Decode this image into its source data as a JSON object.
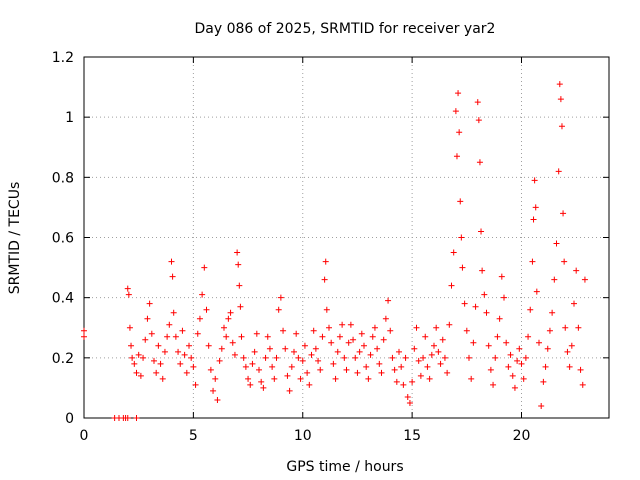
{
  "chart_data": {
    "type": "scatter",
    "title": "Day 086 of 2025, SRMTID for receiver yar2",
    "xlabel": "GPS time / hours",
    "ylabel": "SRMTID / TECUs",
    "xlim": [
      0,
      24
    ],
    "ylim": [
      0,
      1.2
    ],
    "x_ticks": [
      0,
      5,
      10,
      15,
      20
    ],
    "x_tick_labels": [
      "0",
      "5",
      "10",
      "15",
      "20"
    ],
    "y_ticks": [
      0,
      0.2,
      0.4,
      0.6,
      0.8,
      1,
      1.2
    ],
    "y_tick_labels": [
      "0",
      "0.2",
      "0.4",
      "0.6",
      "0.8",
      "1",
      "1.2"
    ],
    "grid": true,
    "marker": "plus",
    "color": "#ff0000",
    "series": [
      {
        "name": "SRMTID",
        "points": [
          [
            0.0,
            0.29
          ],
          [
            0.0,
            0.27
          ],
          [
            1.4,
            0.0
          ],
          [
            1.6,
            0.0
          ],
          [
            1.8,
            0.0
          ],
          [
            1.9,
            0.0
          ],
          [
            2.0,
            0.0
          ],
          [
            2.4,
            0.0
          ],
          [
            2.0,
            0.43
          ],
          [
            2.05,
            0.41
          ],
          [
            2.1,
            0.3
          ],
          [
            2.15,
            0.24
          ],
          [
            2.2,
            0.2
          ],
          [
            2.3,
            0.18
          ],
          [
            2.4,
            0.15
          ],
          [
            2.5,
            0.21
          ],
          [
            2.6,
            0.14
          ],
          [
            2.7,
            0.2
          ],
          [
            2.8,
            0.26
          ],
          [
            2.9,
            0.33
          ],
          [
            3.0,
            0.38
          ],
          [
            3.1,
            0.28
          ],
          [
            3.2,
            0.19
          ],
          [
            3.3,
            0.15
          ],
          [
            3.4,
            0.24
          ],
          [
            3.5,
            0.18
          ],
          [
            3.6,
            0.13
          ],
          [
            3.7,
            0.22
          ],
          [
            3.8,
            0.27
          ],
          [
            3.9,
            0.31
          ],
          [
            4.0,
            0.52
          ],
          [
            4.05,
            0.47
          ],
          [
            4.1,
            0.35
          ],
          [
            4.2,
            0.27
          ],
          [
            4.3,
            0.22
          ],
          [
            4.4,
            0.18
          ],
          [
            4.5,
            0.29
          ],
          [
            4.6,
            0.21
          ],
          [
            4.7,
            0.15
          ],
          [
            4.8,
            0.24
          ],
          [
            4.9,
            0.2
          ],
          [
            5.0,
            0.17
          ],
          [
            5.1,
            0.11
          ],
          [
            5.2,
            0.28
          ],
          [
            5.3,
            0.33
          ],
          [
            5.4,
            0.41
          ],
          [
            5.5,
            0.5
          ],
          [
            5.6,
            0.36
          ],
          [
            5.7,
            0.24
          ],
          [
            5.8,
            0.16
          ],
          [
            5.9,
            0.09
          ],
          [
            6.0,
            0.13
          ],
          [
            6.1,
            0.06
          ],
          [
            6.2,
            0.19
          ],
          [
            6.3,
            0.23
          ],
          [
            6.4,
            0.3
          ],
          [
            6.5,
            0.27
          ],
          [
            6.6,
            0.33
          ],
          [
            6.7,
            0.35
          ],
          [
            6.8,
            0.25
          ],
          [
            6.9,
            0.21
          ],
          [
            7.0,
            0.55
          ],
          [
            7.05,
            0.51
          ],
          [
            7.1,
            0.44
          ],
          [
            7.15,
            0.37
          ],
          [
            7.2,
            0.27
          ],
          [
            7.3,
            0.2
          ],
          [
            7.4,
            0.17
          ],
          [
            7.5,
            0.13
          ],
          [
            7.6,
            0.11
          ],
          [
            7.7,
            0.18
          ],
          [
            7.8,
            0.22
          ],
          [
            7.9,
            0.28
          ],
          [
            8.0,
            0.16
          ],
          [
            8.1,
            0.12
          ],
          [
            8.2,
            0.1
          ],
          [
            8.3,
            0.2
          ],
          [
            8.4,
            0.27
          ],
          [
            8.5,
            0.23
          ],
          [
            8.6,
            0.17
          ],
          [
            8.7,
            0.13
          ],
          [
            8.8,
            0.2
          ],
          [
            8.9,
            0.36
          ],
          [
            9.0,
            0.4
          ],
          [
            9.1,
            0.29
          ],
          [
            9.2,
            0.23
          ],
          [
            9.3,
            0.14
          ],
          [
            9.4,
            0.09
          ],
          [
            9.5,
            0.17
          ],
          [
            9.6,
            0.22
          ],
          [
            9.7,
            0.28
          ],
          [
            9.8,
            0.2
          ],
          [
            9.9,
            0.13
          ],
          [
            10.0,
            0.19
          ],
          [
            10.1,
            0.24
          ],
          [
            10.2,
            0.15
          ],
          [
            10.3,
            0.11
          ],
          [
            10.4,
            0.21
          ],
          [
            10.5,
            0.29
          ],
          [
            10.6,
            0.23
          ],
          [
            10.7,
            0.19
          ],
          [
            10.8,
            0.16
          ],
          [
            10.9,
            0.27
          ],
          [
            11.0,
            0.46
          ],
          [
            11.05,
            0.52
          ],
          [
            11.1,
            0.36
          ],
          [
            11.2,
            0.3
          ],
          [
            11.3,
            0.25
          ],
          [
            11.4,
            0.18
          ],
          [
            11.5,
            0.13
          ],
          [
            11.6,
            0.22
          ],
          [
            11.7,
            0.27
          ],
          [
            11.8,
            0.31
          ],
          [
            11.9,
            0.2
          ],
          [
            12.0,
            0.16
          ],
          [
            12.1,
            0.25
          ],
          [
            12.2,
            0.31
          ],
          [
            12.3,
            0.26
          ],
          [
            12.4,
            0.2
          ],
          [
            12.5,
            0.15
          ],
          [
            12.6,
            0.22
          ],
          [
            12.7,
            0.28
          ],
          [
            12.8,
            0.24
          ],
          [
            12.9,
            0.17
          ],
          [
            13.0,
            0.13
          ],
          [
            13.1,
            0.21
          ],
          [
            13.2,
            0.27
          ],
          [
            13.3,
            0.3
          ],
          [
            13.4,
            0.23
          ],
          [
            13.5,
            0.18
          ],
          [
            13.6,
            0.15
          ],
          [
            13.7,
            0.26
          ],
          [
            13.8,
            0.33
          ],
          [
            13.9,
            0.39
          ],
          [
            14.0,
            0.29
          ],
          [
            14.1,
            0.2
          ],
          [
            14.2,
            0.16
          ],
          [
            14.3,
            0.12
          ],
          [
            14.4,
            0.22
          ],
          [
            14.5,
            0.17
          ],
          [
            14.6,
            0.11
          ],
          [
            14.7,
            0.2
          ],
          [
            14.8,
            0.07
          ],
          [
            14.9,
            0.05
          ],
          [
            15.0,
            0.12
          ],
          [
            15.1,
            0.23
          ],
          [
            15.2,
            0.3
          ],
          [
            15.3,
            0.19
          ],
          [
            15.4,
            0.14
          ],
          [
            15.5,
            0.2
          ],
          [
            15.6,
            0.27
          ],
          [
            15.7,
            0.17
          ],
          [
            15.8,
            0.13
          ],
          [
            15.9,
            0.21
          ],
          [
            16.0,
            0.24
          ],
          [
            16.1,
            0.3
          ],
          [
            16.2,
            0.22
          ],
          [
            16.3,
            0.18
          ],
          [
            16.4,
            0.26
          ],
          [
            16.5,
            0.2
          ],
          [
            16.6,
            0.15
          ],
          [
            16.7,
            0.31
          ],
          [
            16.8,
            0.44
          ],
          [
            16.9,
            0.55
          ],
          [
            17.0,
            1.02
          ],
          [
            17.05,
            0.87
          ],
          [
            17.1,
            1.08
          ],
          [
            17.15,
            0.95
          ],
          [
            17.2,
            0.72
          ],
          [
            17.25,
            0.6
          ],
          [
            17.3,
            0.5
          ],
          [
            17.4,
            0.38
          ],
          [
            17.5,
            0.29
          ],
          [
            17.6,
            0.2
          ],
          [
            17.7,
            0.13
          ],
          [
            17.8,
            0.25
          ],
          [
            17.9,
            0.37
          ],
          [
            18.0,
            1.05
          ],
          [
            18.05,
            0.99
          ],
          [
            18.1,
            0.85
          ],
          [
            18.15,
            0.62
          ],
          [
            18.2,
            0.49
          ],
          [
            18.3,
            0.41
          ],
          [
            18.4,
            0.35
          ],
          [
            18.5,
            0.24
          ],
          [
            18.6,
            0.16
          ],
          [
            18.7,
            0.11
          ],
          [
            18.8,
            0.2
          ],
          [
            18.9,
            0.27
          ],
          [
            19.0,
            0.33
          ],
          [
            19.1,
            0.47
          ],
          [
            19.2,
            0.4
          ],
          [
            19.3,
            0.25
          ],
          [
            19.4,
            0.17
          ],
          [
            19.5,
            0.21
          ],
          [
            19.6,
            0.14
          ],
          [
            19.7,
            0.1
          ],
          [
            19.8,
            0.19
          ],
          [
            19.9,
            0.23
          ],
          [
            20.0,
            0.18
          ],
          [
            20.1,
            0.13
          ],
          [
            20.2,
            0.2
          ],
          [
            20.3,
            0.27
          ],
          [
            20.4,
            0.36
          ],
          [
            20.5,
            0.52
          ],
          [
            20.55,
            0.66
          ],
          [
            20.6,
            0.79
          ],
          [
            20.65,
            0.7
          ],
          [
            20.7,
            0.42
          ],
          [
            20.8,
            0.25
          ],
          [
            20.9,
            0.04
          ],
          [
            21.0,
            0.12
          ],
          [
            21.1,
            0.17
          ],
          [
            21.2,
            0.23
          ],
          [
            21.3,
            0.29
          ],
          [
            21.4,
            0.35
          ],
          [
            21.5,
            0.46
          ],
          [
            21.6,
            0.58
          ],
          [
            21.7,
            0.82
          ],
          [
            21.75,
            1.11
          ],
          [
            21.8,
            1.06
          ],
          [
            21.85,
            0.97
          ],
          [
            21.9,
            0.68
          ],
          [
            21.95,
            0.52
          ],
          [
            22.0,
            0.3
          ],
          [
            22.1,
            0.22
          ],
          [
            22.2,
            0.17
          ],
          [
            22.3,
            0.24
          ],
          [
            22.4,
            0.38
          ],
          [
            22.5,
            0.49
          ],
          [
            22.6,
            0.3
          ],
          [
            22.7,
            0.16
          ],
          [
            22.8,
            0.11
          ],
          [
            22.9,
            0.46
          ]
        ]
      }
    ]
  }
}
